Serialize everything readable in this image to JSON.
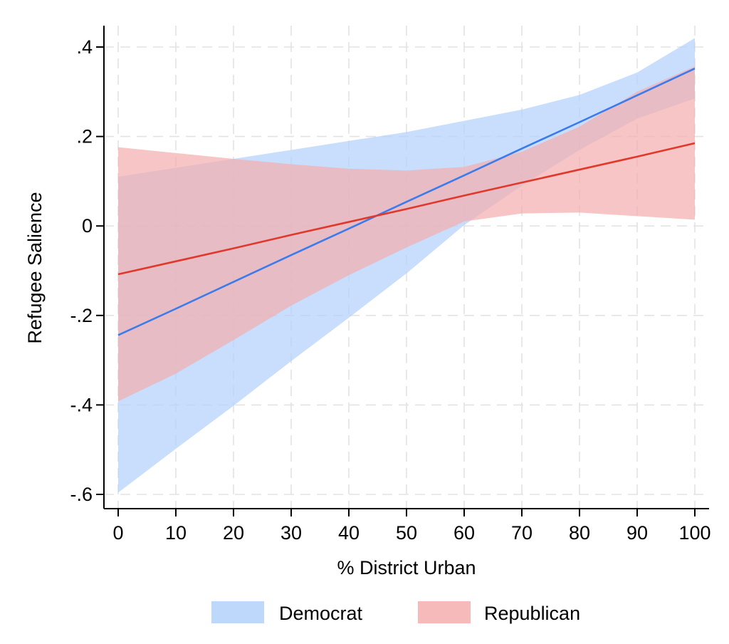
{
  "chart_data": {
    "type": "line",
    "xlabel": "% District Urban",
    "ylabel": "Refugee Salience",
    "xlim": [
      0,
      100
    ],
    "ylim": [
      -0.6,
      0.4
    ],
    "x_ticks": [
      0,
      10,
      20,
      30,
      40,
      50,
      60,
      70,
      80,
      90,
      100
    ],
    "x_tick_labels": [
      "0",
      "10",
      "20",
      "30",
      "40",
      "50",
      "60",
      "70",
      "80",
      "90",
      "100"
    ],
    "y_ticks": [
      0.4,
      0.2,
      0,
      -0.2,
      -0.4,
      -0.6
    ],
    "y_tick_labels": [
      ".4",
      ".2",
      "0",
      "-.2",
      "-.4",
      "-.6"
    ],
    "grid": true,
    "legend_position": "bottom",
    "x": [
      0,
      10,
      20,
      30,
      40,
      50,
      60,
      70,
      80,
      90,
      100
    ],
    "series": [
      {
        "name": "Democrat",
        "line_color": "#3b7bec",
        "band_color": "#b3d1fb",
        "values": [
          -0.244,
          -0.185,
          -0.125,
          -0.065,
          -0.006,
          0.054,
          0.113,
          0.173,
          0.232,
          0.292,
          0.352
        ],
        "lower": [
          -0.596,
          -0.498,
          -0.402,
          -0.302,
          -0.205,
          -0.106,
          0.002,
          0.09,
          0.17,
          0.24,
          0.285
        ],
        "upper": [
          0.11,
          0.13,
          0.15,
          0.17,
          0.19,
          0.21,
          0.235,
          0.26,
          0.293,
          0.343,
          0.42
        ]
      },
      {
        "name": "Republican",
        "line_color": "#e0392c",
        "band_color": "#f4aeae",
        "values": [
          -0.108,
          -0.079,
          -0.05,
          -0.02,
          0.009,
          0.038,
          0.068,
          0.097,
          0.126,
          0.155,
          0.185
        ],
        "lower": [
          -0.392,
          -0.33,
          -0.255,
          -0.178,
          -0.11,
          -0.048,
          0.01,
          0.028,
          0.03,
          0.022,
          0.014
        ],
        "upper": [
          0.176,
          0.163,
          0.15,
          0.138,
          0.128,
          0.124,
          0.132,
          0.166,
          0.222,
          0.3,
          0.357
        ]
      }
    ]
  }
}
